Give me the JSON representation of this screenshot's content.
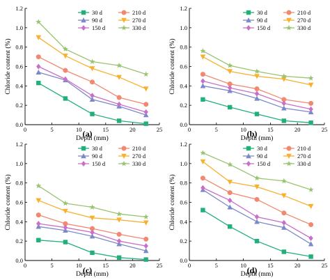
{
  "figure": {
    "panel_letters": [
      "(a)",
      "(b)",
      "(c)",
      "(d)"
    ]
  },
  "series_colors": [
    "#21b07a",
    "#f2886f",
    "#7c89c8",
    "#f7b030",
    "#c86fc8",
    "#98c46e"
  ],
  "marker_shapes": [
    "square",
    "circle",
    "triangle-up",
    "triangle-down",
    "diamond",
    "star"
  ],
  "chart_data": [
    {
      "type": "line",
      "panel": "(a)",
      "xlabel": "Depth (mm)",
      "ylabel": "Chloride content (%)",
      "xlim": [
        0,
        25
      ],
      "ylim": [
        0.0,
        1.2
      ],
      "xticks": [
        "0",
        "5",
        "10",
        "15",
        "20",
        "25"
      ],
      "yticks": [
        "0.0",
        "0.2",
        "0.4",
        "0.6",
        "0.8",
        "1.0",
        "1.2"
      ],
      "grid": false,
      "legend_position": "top-right",
      "x": [
        2.5,
        7.5,
        12.5,
        17.5,
        22.5
      ],
      "series": [
        {
          "name": "30 d",
          "values": [
            0.43,
            0.27,
            0.11,
            0.04,
            0.01
          ]
        },
        {
          "name": "210 d",
          "values": [
            0.7,
            0.56,
            0.44,
            0.28,
            0.21
          ]
        },
        {
          "name": "90 d",
          "values": [
            0.54,
            0.46,
            0.26,
            0.19,
            0.1
          ]
        },
        {
          "name": "270 d",
          "values": [
            0.9,
            0.71,
            0.58,
            0.49,
            0.37
          ]
        },
        {
          "name": "150 d",
          "values": [
            0.6,
            0.47,
            0.3,
            0.21,
            0.13
          ]
        },
        {
          "name": "330 d",
          "values": [
            1.06,
            0.78,
            0.65,
            0.61,
            0.52
          ]
        }
      ]
    },
    {
      "type": "line",
      "panel": "(b)",
      "xlabel": "Depth (mm)",
      "ylabel": "Chloride content (%)",
      "xlim": [
        0,
        25
      ],
      "ylim": [
        0.0,
        1.2
      ],
      "xticks": [
        "0",
        "5",
        "10",
        "15",
        "20",
        "25"
      ],
      "yticks": [
        "0.0",
        "0.2",
        "0.4",
        "0.6",
        "0.8",
        "1.0",
        "1.2"
      ],
      "grid": false,
      "legend_position": "top-right",
      "x": [
        2.5,
        7.5,
        12.5,
        17.5,
        22.5
      ],
      "series": [
        {
          "name": "30 d",
          "values": [
            0.26,
            0.18,
            0.11,
            0.04,
            0.02
          ]
        },
        {
          "name": "210 d",
          "values": [
            0.52,
            0.42,
            0.37,
            0.26,
            0.22
          ]
        },
        {
          "name": "90 d",
          "values": [
            0.4,
            0.35,
            0.27,
            0.17,
            0.13
          ]
        },
        {
          "name": "270 d",
          "values": [
            0.7,
            0.55,
            0.5,
            0.47,
            0.41
          ]
        },
        {
          "name": "150 d",
          "values": [
            0.45,
            0.38,
            0.32,
            0.22,
            0.16
          ]
        },
        {
          "name": "330 d",
          "values": [
            0.76,
            0.61,
            0.55,
            0.5,
            0.48
          ]
        }
      ]
    },
    {
      "type": "line",
      "panel": "(c)",
      "xlabel": "Depth (mm)",
      "ylabel": "Chloride content (%)",
      "xlim": [
        0,
        25
      ],
      "ylim": [
        0.0,
        1.2
      ],
      "xticks": [
        "0",
        "5",
        "10",
        "15",
        "20",
        "25"
      ],
      "yticks": [
        "0.0",
        "0.2",
        "0.4",
        "0.6",
        "0.8",
        "1.0",
        "1.2"
      ],
      "grid": false,
      "legend_position": "top-right",
      "x": [
        2.5,
        7.5,
        12.5,
        17.5,
        22.5
      ],
      "series": [
        {
          "name": "30 d",
          "values": [
            0.21,
            0.19,
            0.08,
            0.03,
            0.01
          ]
        },
        {
          "name": "210 d",
          "values": [
            0.47,
            0.38,
            0.33,
            0.27,
            0.22
          ]
        },
        {
          "name": "90 d",
          "values": [
            0.35,
            0.31,
            0.25,
            0.17,
            0.1
          ]
        },
        {
          "name": "270 d",
          "values": [
            0.62,
            0.51,
            0.44,
            0.42,
            0.39
          ]
        },
        {
          "name": "150 d",
          "values": [
            0.38,
            0.34,
            0.29,
            0.2,
            0.15
          ]
        },
        {
          "name": "330 d",
          "values": [
            0.77,
            0.59,
            0.55,
            0.48,
            0.45
          ]
        }
      ]
    },
    {
      "type": "line",
      "panel": "(d)",
      "xlabel": "Depth (mm)",
      "ylabel": "Chloride content (%)",
      "xlim": [
        0,
        25
      ],
      "ylim": [
        0.0,
        1.2
      ],
      "xticks": [
        "0",
        "5",
        "10",
        "15",
        "20",
        "25"
      ],
      "yticks": [
        "0.0",
        "0.2",
        "0.4",
        "0.6",
        "0.8",
        "1.0",
        "1.2"
      ],
      "grid": false,
      "legend_position": "top-right",
      "x": [
        2.5,
        7.5,
        12.5,
        17.5,
        22.5
      ],
      "series": [
        {
          "name": "30 d",
          "values": [
            0.52,
            0.35,
            0.2,
            0.09,
            0.04
          ]
        },
        {
          "name": "210 d",
          "values": [
            0.85,
            0.7,
            0.63,
            0.49,
            0.37
          ]
        },
        {
          "name": "90 d",
          "values": [
            0.73,
            0.55,
            0.4,
            0.34,
            0.17
          ]
        },
        {
          "name": "270 d",
          "values": [
            1.02,
            0.81,
            0.76,
            0.67,
            0.56
          ]
        },
        {
          "name": "150 d",
          "values": [
            0.75,
            0.62,
            0.45,
            0.39,
            0.23
          ]
        },
        {
          "name": "330 d",
          "values": [
            1.11,
            0.99,
            0.85,
            0.82,
            0.73
          ]
        }
      ]
    }
  ]
}
